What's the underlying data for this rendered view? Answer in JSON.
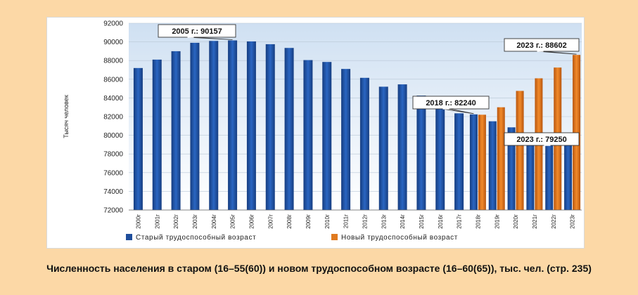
{
  "caption": "Численность населения в старом (16–55(60)) и новом трудоспособном возрасте (16–60(65)), тыс. чел. (стр. 235)",
  "chart_data": {
    "type": "bar",
    "ylabel": "Тысяч человек",
    "ylim": [
      72000,
      92000
    ],
    "yticks": [
      72000,
      74000,
      76000,
      78000,
      80000,
      82000,
      84000,
      86000,
      88000,
      90000,
      92000
    ],
    "grid": true,
    "legend_position": "bottom",
    "categories": [
      "2000г",
      "2001г",
      "2002г",
      "2003г",
      "2004г",
      "2005г",
      "2006г",
      "2007г",
      "2008г",
      "2009г",
      "2010г",
      "2011г",
      "2012г",
      "2013г",
      "2014г",
      "2015г",
      "2016г",
      "2017г",
      "2018г",
      "2019г",
      "2020г",
      "2021г",
      "2022г",
      "2023г"
    ],
    "series": [
      {
        "name": "Старый трудоспособный возраст",
        "color": "#1f4e9c",
        "values": [
          87200,
          88100,
          89000,
          89900,
          90100,
          90157,
          90050,
          89750,
          89350,
          88050,
          87850,
          87100,
          86150,
          85200,
          85450,
          84250,
          83150,
          82350,
          82240,
          81500,
          80850,
          79250,
          79250,
          79250
        ]
      },
      {
        "name": "Новый трудоспособный возраст",
        "color": "#e07a1f",
        "values": [
          null,
          null,
          null,
          null,
          null,
          null,
          null,
          null,
          null,
          null,
          null,
          null,
          null,
          null,
          null,
          null,
          null,
          null,
          82200,
          83000,
          84750,
          86100,
          87250,
          88602
        ]
      }
    ],
    "annotations": [
      {
        "text": "2005 г.: 90157",
        "category": "2005г",
        "value": 90157
      },
      {
        "text": "2018 г.: 82240",
        "category": "2018г",
        "value": 82240
      },
      {
        "text": "2023 г.: 88602",
        "category": "2023г",
        "value": 88602
      },
      {
        "text": "2023 г.: 79250",
        "category": "2023г",
        "value": 79250
      }
    ]
  }
}
